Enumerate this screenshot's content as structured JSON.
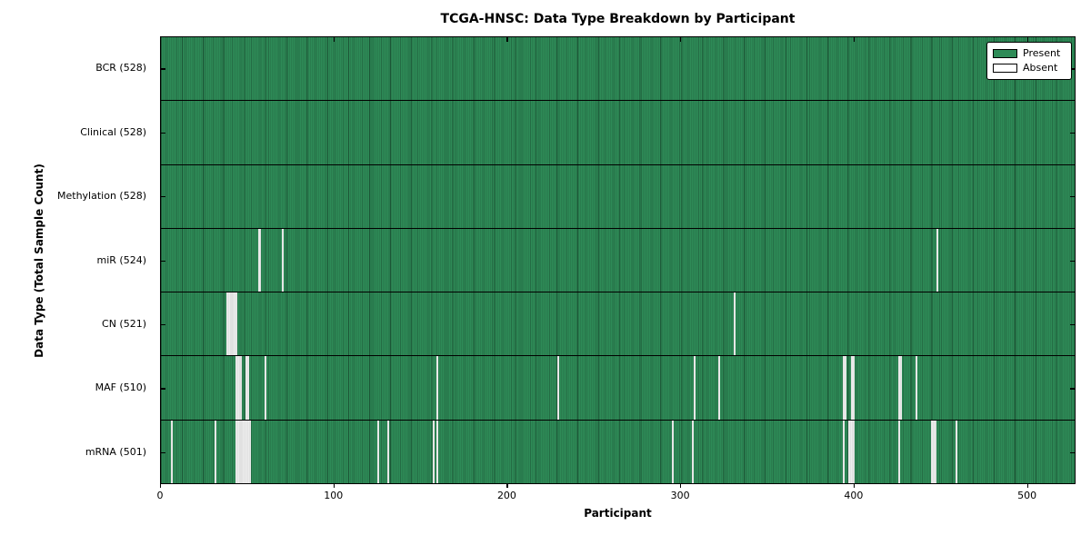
{
  "title": "TCGA-HNSC: Data Type Breakdown by Participant",
  "xlabel": "Participant",
  "ylabel": "Data Type (Total Sample Count)",
  "legend": {
    "present_label": "Present",
    "absent_label": "Absent"
  },
  "colors": {
    "present": "#2E8B57",
    "absent": "#FFFFFF",
    "frame": "#000000"
  },
  "chart_data": {
    "type": "heatmap",
    "title": "TCGA-HNSC: Data Type Breakdown by Participant",
    "xlabel": "Participant",
    "ylabel": "Data Type (Total Sample Count)",
    "x_range": [
      0,
      528
    ],
    "x_ticks": [
      0,
      100,
      200,
      300,
      400,
      500
    ],
    "total_participants": 528,
    "legend_position": "upper right",
    "rows": [
      {
        "label": "BCR (528)",
        "data_type": "BCR",
        "present_count": 528,
        "absent_count": 0,
        "absent_ranges": []
      },
      {
        "label": "Clinical (528)",
        "data_type": "Clinical",
        "present_count": 528,
        "absent_count": 0,
        "absent_ranges": []
      },
      {
        "label": "Methylation (528)",
        "data_type": "Methylation",
        "present_count": 528,
        "absent_count": 0,
        "absent_ranges": []
      },
      {
        "label": "miR (524)",
        "data_type": "miR",
        "present_count": 524,
        "absent_count": 4,
        "absent_ranges": [
          [
            56,
            2
          ],
          [
            70,
            1
          ],
          [
            448,
            1
          ]
        ]
      },
      {
        "label": "CN (521)",
        "data_type": "CN",
        "present_count": 521,
        "absent_count": 7,
        "absent_ranges": [
          [
            38,
            6
          ],
          [
            331,
            1
          ]
        ]
      },
      {
        "label": "MAF (510)",
        "data_type": "MAF",
        "present_count": 510,
        "absent_count": 18,
        "absent_ranges": [
          [
            43,
            4
          ],
          [
            49,
            2
          ],
          [
            60,
            1
          ],
          [
            159,
            1
          ],
          [
            229,
            1
          ],
          [
            308,
            1
          ],
          [
            322,
            1
          ],
          [
            394,
            2
          ],
          [
            399,
            2
          ],
          [
            426,
            2
          ],
          [
            436,
            1
          ]
        ]
      },
      {
        "label": "mRNA (501)",
        "data_type": "mRNA",
        "present_count": 501,
        "absent_count": 27,
        "absent_ranges": [
          [
            6,
            1
          ],
          [
            31,
            1
          ],
          [
            43,
            9
          ],
          [
            125,
            1
          ],
          [
            131,
            1
          ],
          [
            157,
            1
          ],
          [
            159,
            1
          ],
          [
            295,
            1
          ],
          [
            307,
            1
          ],
          [
            394,
            1
          ],
          [
            397,
            4
          ],
          [
            426,
            1
          ],
          [
            445,
            3
          ],
          [
            459,
            1
          ]
        ]
      }
    ]
  }
}
